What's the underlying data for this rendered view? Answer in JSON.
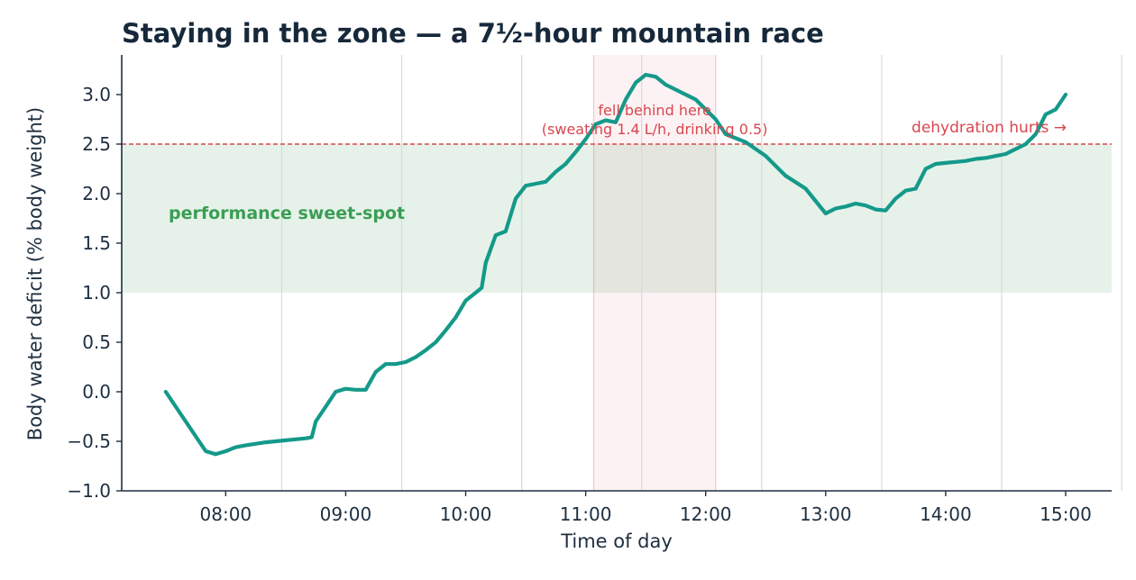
{
  "chart_data": {
    "type": "line",
    "title": "Staying in the zone — a 7½-hour mountain race",
    "xlabel": "Time of day",
    "ylabel": "Body water deficit  (% body weight)",
    "xlim": [
      "07:08",
      "15:23"
    ],
    "ylim": [
      -1.0,
      3.4
    ],
    "x_ticks": [
      "08:00",
      "09:00",
      "10:00",
      "11:00",
      "12:00",
      "13:00",
      "14:00",
      "15:00"
    ],
    "y_ticks": [
      -1.0,
      -0.5,
      0.0,
      0.5,
      1.0,
      1.5,
      2.0,
      2.5,
      3.0
    ],
    "y_tick_labels": [
      "−1.0",
      "−0.5",
      "0.0",
      "0.5",
      "1.0",
      "1.5",
      "2.0",
      "2.5",
      "3.0"
    ],
    "grid": "vertical lines only, faint",
    "sweet_spot": {
      "range": [
        1.0,
        2.5
      ],
      "label": "performance sweet-spot",
      "color": "#3a9e55"
    },
    "threshold": {
      "y": 2.5,
      "label": "dehydration hurts →",
      "color": "#d9464f"
    },
    "shaded_period": {
      "x": [
        "11:04",
        "12:05"
      ],
      "label_line1": "fell behind here",
      "label_line2": "(sweating 1.4 L/h, drinking 0.5)",
      "color": "#d9464f"
    },
    "series": [
      {
        "color": "#14998a",
        "x": [
          "07:30",
          "07:40",
          "07:50",
          "07:55",
          "08:00",
          "08:05",
          "08:10",
          "08:20",
          "08:30",
          "08:40",
          "08:43",
          "08:45",
          "08:50",
          "08:55",
          "09:00",
          "09:05",
          "09:10",
          "09:15",
          "09:20",
          "09:25",
          "09:30",
          "09:35",
          "09:40",
          "09:45",
          "09:50",
          "09:55",
          "10:00",
          "10:05",
          "10:08",
          "10:10",
          "10:15",
          "10:20",
          "10:25",
          "10:30",
          "10:35",
          "10:40",
          "10:45",
          "10:50",
          "10:55",
          "11:00",
          "11:05",
          "11:10",
          "11:15",
          "11:20",
          "11:25",
          "11:30",
          "11:35",
          "11:40",
          "11:45",
          "11:50",
          "11:55",
          "12:00",
          "12:05",
          "12:10",
          "12:20",
          "12:30",
          "12:40",
          "12:50",
          "13:00",
          "13:05",
          "13:10",
          "13:15",
          "13:20",
          "13:25",
          "13:30",
          "13:35",
          "13:40",
          "13:45",
          "13:50",
          "13:55",
          "14:00",
          "14:05",
          "14:10",
          "14:15",
          "14:20",
          "14:25",
          "14:30",
          "14:35",
          "14:40",
          "14:45",
          "14:50",
          "14:55",
          "15:00"
        ],
        "values": [
          0.0,
          -0.3,
          -0.6,
          -0.63,
          -0.6,
          -0.56,
          -0.54,
          -0.51,
          -0.49,
          -0.47,
          -0.46,
          -0.3,
          -0.15,
          0.0,
          0.03,
          0.02,
          0.02,
          0.2,
          0.28,
          0.28,
          0.3,
          0.35,
          0.42,
          0.5,
          0.62,
          0.75,
          0.92,
          1.0,
          1.05,
          1.3,
          1.58,
          1.62,
          1.95,
          2.08,
          2.1,
          2.12,
          2.22,
          2.3,
          2.42,
          2.55,
          2.7,
          2.74,
          2.72,
          2.95,
          3.12,
          3.2,
          3.18,
          3.1,
          3.05,
          3.0,
          2.95,
          2.85,
          2.75,
          2.6,
          2.52,
          2.38,
          2.18,
          2.05,
          1.8,
          1.85,
          1.87,
          1.9,
          1.88,
          1.84,
          1.83,
          1.95,
          2.03,
          2.05,
          2.25,
          2.3,
          2.31,
          2.32,
          2.33,
          2.35,
          2.36,
          2.38,
          2.4,
          2.45,
          2.5,
          2.6,
          2.8,
          2.85,
          3.0
        ]
      }
    ]
  }
}
